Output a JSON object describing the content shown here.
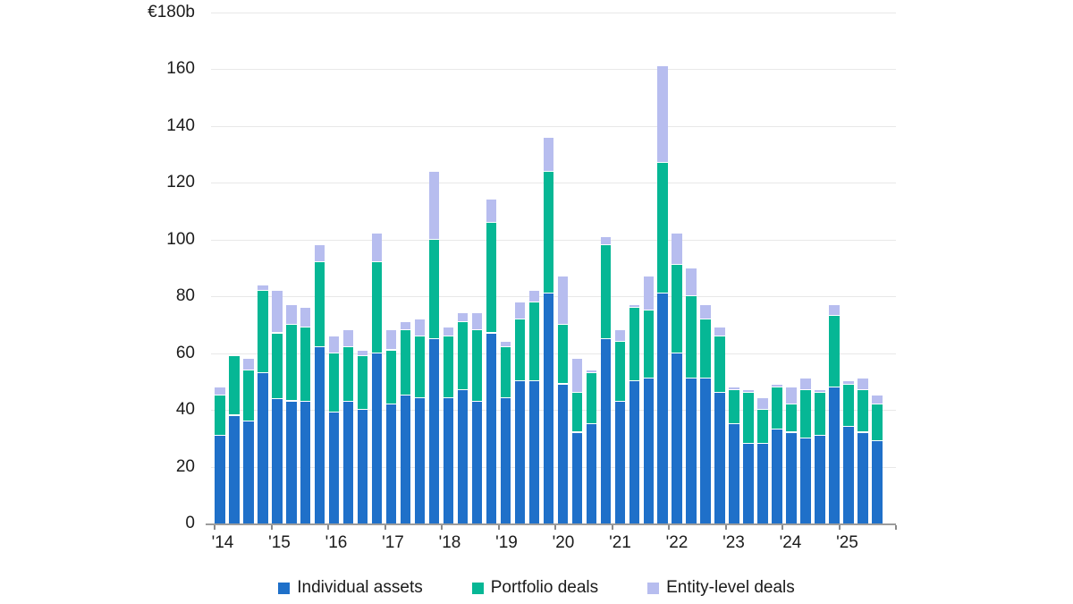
{
  "chart_data": {
    "type": "bar",
    "stacked": true,
    "title": "",
    "unit": "EUR billions",
    "grid": true,
    "legend_position": "bottom",
    "y_axis": {
      "max_label": "€180b",
      "max": 180,
      "ticks": [
        0,
        20,
        40,
        60,
        80,
        100,
        120,
        140,
        160
      ],
      "tick_step": 20
    },
    "x_axis": {
      "year_labels": [
        "'14",
        "'15",
        "'16",
        "'17",
        "'18",
        "'19",
        "'20",
        "'21",
        "'22",
        "'23",
        "'24",
        "'25"
      ]
    },
    "categories": [
      "'14 Q1",
      "'14 Q2",
      "'14 Q3",
      "'14 Q4",
      "'15 Q1",
      "'15 Q2",
      "'15 Q3",
      "'15 Q4",
      "'16 Q1",
      "'16 Q2",
      "'16 Q3",
      "'16 Q4",
      "'17 Q1",
      "'17 Q2",
      "'17 Q3",
      "'17 Q4",
      "'18 Q1",
      "'18 Q2",
      "'18 Q3",
      "'18 Q4",
      "'19 Q1",
      "'19 Q2",
      "'19 Q3",
      "'19 Q4",
      "'20 Q1",
      "'20 Q2",
      "'20 Q3",
      "'20 Q4",
      "'21 Q1",
      "'21 Q2",
      "'21 Q3",
      "'21 Q4",
      "'22 Q1",
      "'22 Q2",
      "'22 Q3",
      "'22 Q4",
      "'23 Q1",
      "'23 Q2",
      "'23 Q3",
      "'23 Q4",
      "'24 Q1",
      "'24 Q2",
      "'24 Q3",
      "'24 Q4",
      "'25 Q1",
      "'25 Q2",
      "'25 Q3"
    ],
    "series": [
      {
        "name": "Individual assets",
        "color": "#1f70c9",
        "values": [
          31,
          38,
          36,
          53,
          44,
          43,
          43,
          62,
          39,
          43,
          40,
          60,
          42,
          45,
          44,
          65,
          44,
          47,
          43,
          67,
          44,
          50,
          50,
          81,
          49,
          32,
          35,
          65,
          43,
          50,
          51,
          81,
          60,
          51,
          51,
          46,
          35,
          28,
          28,
          33,
          32,
          30,
          31,
          48,
          34,
          32,
          29
        ]
      },
      {
        "name": "Portfolio deals",
        "color": "#06b795",
        "values": [
          14,
          21,
          18,
          29,
          23,
          27,
          26,
          30,
          21,
          19,
          19,
          32,
          19,
          23,
          22,
          35,
          22,
          24,
          25,
          39,
          18,
          22,
          28,
          43,
          21,
          14,
          18,
          33,
          21,
          26,
          24,
          46,
          31,
          29,
          21,
          20,
          12,
          18,
          12,
          15,
          10,
          17,
          15,
          25,
          15,
          15,
          13
        ]
      },
      {
        "name": "Entity-level deals",
        "color": "#b7bdef",
        "values": [
          3,
          0,
          4,
          2,
          15,
          7,
          7,
          6,
          6,
          6,
          2,
          10,
          7,
          3,
          6,
          24,
          3,
          3,
          6,
          8,
          2,
          6,
          4,
          12,
          17,
          12,
          1,
          3,
          4,
          1,
          12,
          34,
          11,
          10,
          5,
          3,
          1,
          1,
          4,
          1,
          6,
          4,
          1,
          4,
          1,
          4,
          3
        ]
      }
    ],
    "totals": [
      48,
      59,
      58,
      84,
      82,
      77,
      76,
      98,
      66,
      68,
      61,
      102,
      68,
      71,
      72,
      124,
      69,
      74,
      74,
      114,
      64,
      78,
      82,
      136,
      87,
      58,
      54,
      101,
      68,
      77,
      87,
      161,
      102,
      90,
      77,
      69,
      48,
      47,
      44,
      49,
      48,
      51,
      47,
      77,
      50,
      51,
      45
    ]
  },
  "colors": {
    "gridline": "#e8e8e8",
    "axis": "#9c9c9c",
    "text": "#1c1c1c",
    "background": "#ffffff"
  }
}
